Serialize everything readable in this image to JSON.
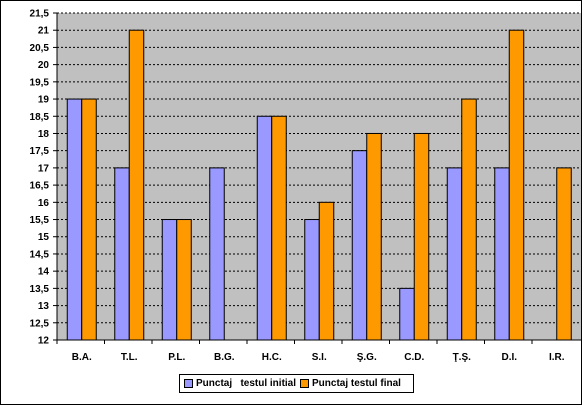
{
  "chart_data": {
    "type": "bar",
    "categories": [
      "B.A.",
      "T.L.",
      "P.L.",
      "B.G.",
      "H.C.",
      "S.I.",
      "Ş.G.",
      "C.D.",
      "Ţ.Ş.",
      "D.I.",
      "I.R."
    ],
    "series": [
      {
        "name": "Punctaj   testul initial",
        "color": "#9999ff",
        "values": [
          19,
          17,
          15.5,
          17,
          18.5,
          15.5,
          17.5,
          13.5,
          17,
          17,
          null
        ]
      },
      {
        "name": "Punctaj testul final",
        "color": "#ff9900",
        "values": [
          19,
          21,
          15.5,
          null,
          18.5,
          16,
          18,
          18,
          19,
          21,
          17
        ]
      }
    ],
    "yticks": [
      "12",
      "12,5",
      "13",
      "13,5",
      "14",
      "14,5",
      "15",
      "15,5",
      "16",
      "16,5",
      "17",
      "17,5",
      "18",
      "18,5",
      "19",
      "19,5",
      "20",
      "20,5",
      "21",
      "21,5"
    ],
    "ylim": [
      12,
      21.5
    ],
    "grid": "dashed horizontal",
    "plot_background": "#c0c0c0",
    "legend_position": "bottom",
    "title": "",
    "xlabel": "",
    "ylabel": ""
  }
}
